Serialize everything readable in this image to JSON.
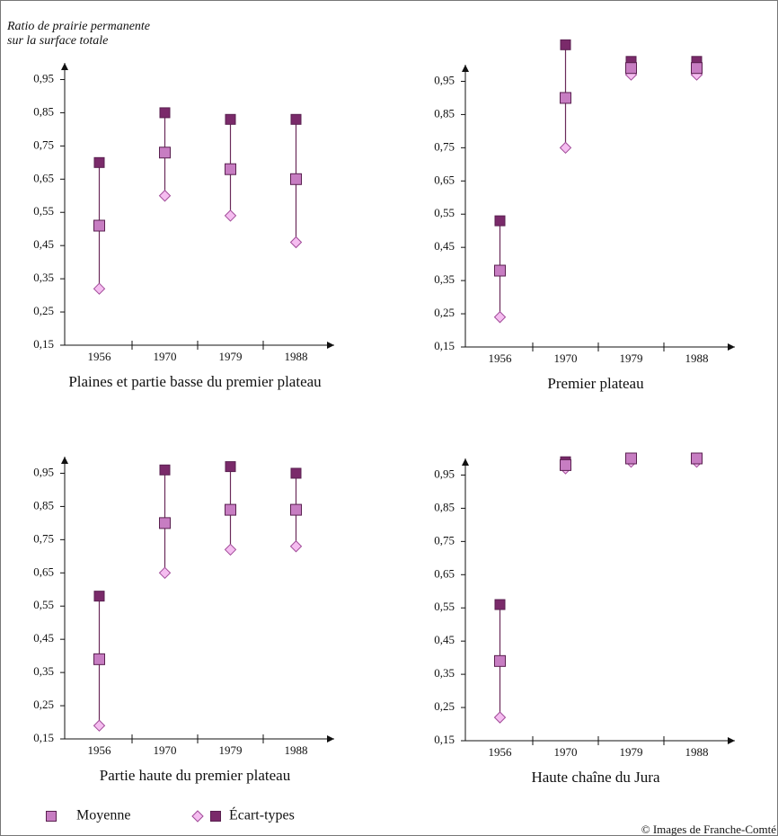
{
  "y_label": [
    "Ratio de prairie permanente",
    "sur la surface totale"
  ],
  "legend": [
    {
      "label": "Moyenne",
      "fill": "#c77dc2"
    },
    {
      "label": "Écart-types",
      "fill": "#7a2a6a",
      "low_fill": "#f5bdf0"
    }
  ],
  "credit": "© Images de Franche-Comté",
  "chart_data": [
    {
      "type": "range",
      "title": "Plaines et partie basse du premier plateau",
      "categories": [
        "1956",
        "1970",
        "1979",
        "1988"
      ],
      "mean": [
        0.51,
        0.73,
        0.68,
        0.65
      ],
      "low": [
        0.32,
        0.6,
        0.54,
        0.46
      ],
      "high": [
        0.7,
        0.85,
        0.83,
        0.83
      ],
      "ylim": [
        0.15,
        1.0
      ],
      "yticks": [
        {
          "value": 0.15,
          "label": "0,15"
        },
        {
          "value": 0.25,
          "label": "0,25"
        },
        {
          "value": 0.35,
          "label": "0,35"
        },
        {
          "value": 0.45,
          "label": "0,45"
        },
        {
          "value": 0.55,
          "label": "0,55"
        },
        {
          "value": 0.65,
          "label": "0,65"
        },
        {
          "value": 0.75,
          "label": "0,75"
        },
        {
          "value": 0.85,
          "label": "0,85"
        },
        {
          "value": 0.95,
          "label": "0,95"
        }
      ]
    },
    {
      "type": "range",
      "title": "Premier plateau",
      "categories": [
        "1956",
        "1970",
        "1979",
        "1988"
      ],
      "mean": [
        0.38,
        0.9,
        0.99,
        0.99
      ],
      "low": [
        0.24,
        0.75,
        0.97,
        0.97
      ],
      "high": [
        0.53,
        1.06,
        1.01,
        1.01
      ],
      "ylim": [
        0.15,
        1.0
      ],
      "yticks": [
        {
          "value": 0.15,
          "label": "0,15"
        },
        {
          "value": 0.25,
          "label": "0,25"
        },
        {
          "value": 0.35,
          "label": "0,35"
        },
        {
          "value": 0.45,
          "label": "0,45"
        },
        {
          "value": 0.55,
          "label": "0,55"
        },
        {
          "value": 0.65,
          "label": "0,65"
        },
        {
          "value": 0.75,
          "label": "0,75"
        },
        {
          "value": 0.85,
          "label": "0,85"
        },
        {
          "value": 0.95,
          "label": "0,95"
        }
      ]
    },
    {
      "type": "range",
      "title": "Partie haute du premier plateau",
      "categories": [
        "1956",
        "1970",
        "1979",
        "1988"
      ],
      "mean": [
        0.39,
        0.8,
        0.84,
        0.84
      ],
      "low": [
        0.19,
        0.65,
        0.72,
        0.73
      ],
      "high": [
        0.58,
        0.96,
        0.97,
        0.95
      ],
      "ylim": [
        0.15,
        1.0
      ],
      "yticks": [
        {
          "value": 0.15,
          "label": "0,15"
        },
        {
          "value": 0.25,
          "label": "0,25"
        },
        {
          "value": 0.35,
          "label": "0,35"
        },
        {
          "value": 0.45,
          "label": "0,45"
        },
        {
          "value": 0.55,
          "label": "0,55"
        },
        {
          "value": 0.65,
          "label": "0,65"
        },
        {
          "value": 0.75,
          "label": "0,75"
        },
        {
          "value": 0.85,
          "label": "0,85"
        },
        {
          "value": 0.95,
          "label": "0,95"
        }
      ]
    },
    {
      "type": "range",
      "title": "Haute chaîne du Jura",
      "categories": [
        "1956",
        "1970",
        "1979",
        "1988"
      ],
      "mean": [
        0.39,
        0.98,
        1.0,
        1.0
      ],
      "low": [
        0.22,
        0.97,
        0.99,
        0.99
      ],
      "high": [
        0.56,
        0.99,
        1.0,
        1.0
      ],
      "ylim": [
        0.15,
        1.0
      ],
      "yticks": [
        {
          "value": 0.15,
          "label": "0,15"
        },
        {
          "value": 0.25,
          "label": "0,25"
        },
        {
          "value": 0.35,
          "label": "0,35"
        },
        {
          "value": 0.45,
          "label": "0,45"
        },
        {
          "value": 0.55,
          "label": "0,55"
        },
        {
          "value": 0.65,
          "label": "0,65"
        },
        {
          "value": 0.75,
          "label": "0,75"
        },
        {
          "value": 0.85,
          "label": "0,85"
        },
        {
          "value": 0.95,
          "label": "0,95"
        }
      ]
    }
  ]
}
